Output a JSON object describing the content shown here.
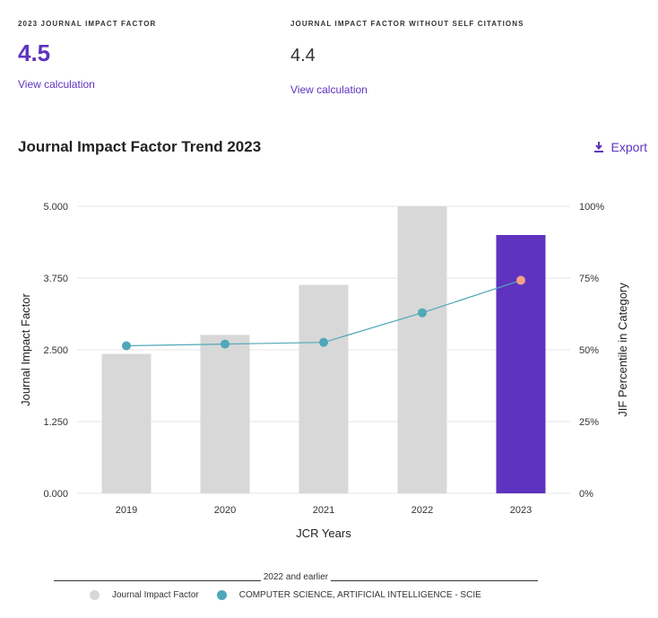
{
  "metrics": {
    "jif": {
      "label": "2023 JOURNAL IMPACT FACTOR",
      "value": "4.5",
      "link": "View calculation"
    },
    "jif_no_self": {
      "label": "JOURNAL IMPACT FACTOR WITHOUT SELF CITATIONS",
      "value": "4.4",
      "link": "View calculation"
    }
  },
  "trend": {
    "title": "Journal Impact Factor Trend 2023",
    "export_label": "Export"
  },
  "legend": {
    "group_label": "2022 and earlier",
    "items": [
      {
        "label": "Journal Impact Factor",
        "color": "#d8d8d8"
      },
      {
        "label": "COMPUTER SCIENCE, ARTIFICIAL INTELLIGENCE - SCIE",
        "color": "#4fa8b8"
      }
    ]
  },
  "chart_data": {
    "type": "bar",
    "categories": [
      "2019",
      "2020",
      "2021",
      "2022",
      "2023"
    ],
    "series": [
      {
        "name": "Journal Impact Factor",
        "values": [
          2.43,
          2.76,
          3.63,
          5.0,
          4.5
        ],
        "axis": "left"
      },
      {
        "name": "COMPUTER SCIENCE, ARTIFICIAL INTELLIGENCE - SCIE",
        "type": "line",
        "values": [
          51.4,
          52.0,
          52.6,
          62.9,
          74.2
        ],
        "axis": "right"
      }
    ],
    "bar_colors": [
      "#d8d8d8",
      "#d8d8d8",
      "#d8d8d8",
      "#d8d8d8",
      "#5e33bf"
    ],
    "point_colors": [
      "#4fa8b8",
      "#4fa8b8",
      "#4fa8b8",
      "#4fa8b8",
      "#f4a287"
    ],
    "line_color": "#4fa8b8",
    "xlabel": "JCR Years",
    "ylabel": "Journal Impact Factor",
    "y2label": "JIF Percentile in Category",
    "ylim": [
      0,
      5
    ],
    "y2lim": [
      0,
      100
    ],
    "yticks": [
      "0.000",
      "1.250",
      "2.500",
      "3.750",
      "5.000"
    ],
    "y2ticks": [
      "0%",
      "25%",
      "50%",
      "75%",
      "100%"
    ]
  }
}
